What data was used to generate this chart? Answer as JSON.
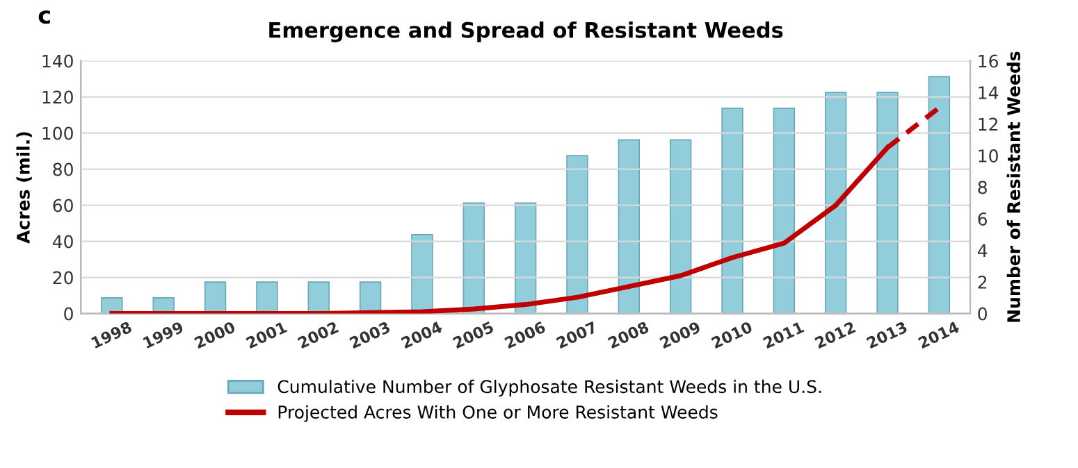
{
  "chart_data": {
    "type": "bar",
    "title": "Emergence and Spread of Resistant Weeds",
    "ylabel": "Acres (mil.)",
    "y2label": "Number of Resistant Weeds",
    "annotations": [
      "c"
    ],
    "categories": [
      "1998",
      "1999",
      "2000",
      "2001",
      "2002",
      "2003",
      "2004",
      "2005",
      "2006",
      "2007",
      "2008",
      "2009",
      "2010",
      "2011",
      "2012",
      "2013",
      "2014"
    ],
    "series": [
      {
        "name": "Cumulative Number of Glyphosate Resistant Weeds in the U.S.",
        "axis": "y2",
        "color": "#92cddc",
        "values": [
          1,
          1,
          2,
          2,
          2,
          2,
          5,
          7,
          7,
          10,
          11,
          11,
          13,
          13,
          14,
          14,
          15
        ]
      },
      {
        "name": "Projected Acres With One or More Resistant Weeds",
        "type": "line",
        "color": "#c00000",
        "line_style": "solid",
        "values": [
          0,
          0,
          0,
          0,
          0,
          0.5,
          1,
          2.5,
          5,
          9,
          15,
          21,
          31,
          39,
          60,
          92,
          null
        ]
      },
      {
        "type": "line",
        "color": "#c00000",
        "line_style": "dashed",
        "values": [
          null,
          null,
          null,
          null,
          null,
          null,
          null,
          null,
          null,
          null,
          null,
          null,
          null,
          null,
          null,
          92,
          114
        ]
      }
    ],
    "ylim": [
      0,
      140
    ],
    "yticks": [
      0,
      20,
      40,
      60,
      80,
      100,
      120,
      140
    ],
    "y2lim": [
      0,
      16
    ],
    "y2ticks": [
      0,
      2,
      4,
      6,
      8,
      10,
      12,
      14,
      16
    ],
    "grid": "y",
    "legend": "bottom"
  }
}
